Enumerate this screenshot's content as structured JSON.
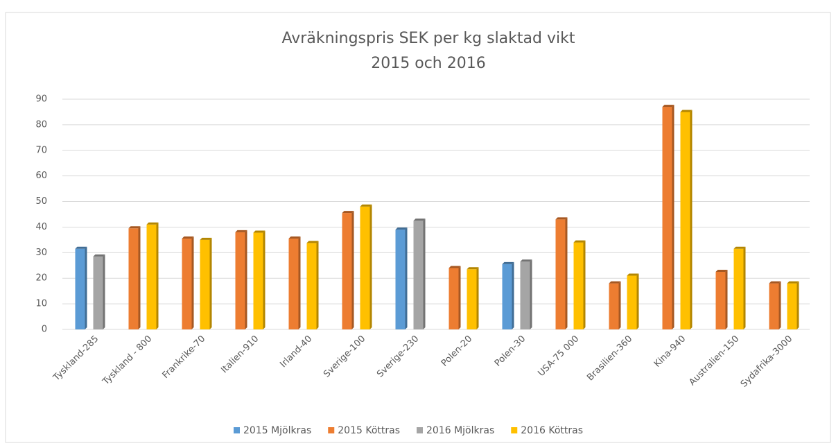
{
  "chart_data": {
    "type": "bar",
    "title": "Avräkningspris SEK per kg slaktad vikt",
    "subtitle": "2015 och 2016",
    "categories": [
      "Tyskland-285",
      "Tyskland - 800",
      "Frankrike-70",
      "Italien-910",
      "Irland-40",
      "Sverige-100",
      "Sverige-230",
      "Polen-20",
      "Polen-30",
      "USA-75 000",
      "Brasilien-360",
      "Kina-940",
      "Australien-150",
      "Sydafrika-3000"
    ],
    "series": [
      {
        "name": "2015 Mjölkras",
        "color": "#5b9bd5",
        "values": [
          31.5,
          null,
          null,
          null,
          null,
          null,
          39,
          null,
          25.5,
          null,
          null,
          null,
          null,
          null
        ]
      },
      {
        "name": "2015 Köttras",
        "color": "#ed7d31",
        "values": [
          null,
          39.5,
          35.5,
          38,
          35.5,
          45.5,
          null,
          24,
          null,
          43,
          18,
          87,
          22.5,
          18
        ]
      },
      {
        "name": "2016 Mjölkras",
        "color": "#a5a5a5",
        "values": [
          28.5,
          null,
          null,
          null,
          null,
          null,
          42.5,
          null,
          26.5,
          null,
          null,
          null,
          null,
          null
        ]
      },
      {
        "name": "2016 Köttras",
        "color": "#ffc000",
        "values": [
          null,
          41,
          35,
          37.8,
          33.8,
          48,
          null,
          23.5,
          null,
          34,
          21,
          85,
          31.5,
          18
        ]
      }
    ],
    "ylim": [
      0,
      90
    ],
    "yticks": [
      0,
      10,
      20,
      30,
      40,
      50,
      60,
      70,
      80,
      90
    ],
    "grid": true,
    "legend": "bottom"
  }
}
